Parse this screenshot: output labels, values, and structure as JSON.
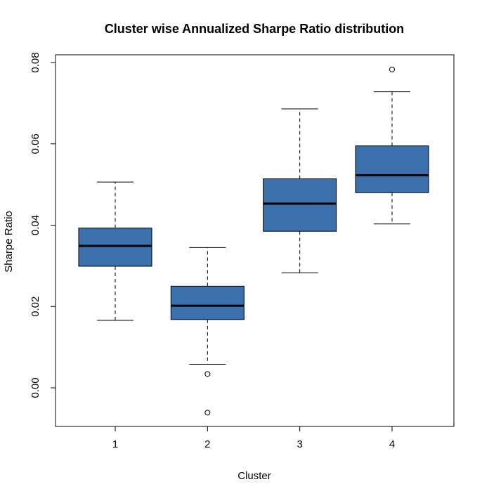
{
  "chart_data": {
    "type": "boxplot",
    "title": "Cluster wise Annualized Sharpe Ratio distribution",
    "xlabel": "Cluster",
    "ylabel": "Sharpe Ratio",
    "ylim": [
      -0.0095,
      0.0819
    ],
    "yticks": [
      0.0,
      0.02,
      0.04,
      0.06,
      0.08
    ],
    "ytick_labels": [
      "0.00",
      "0.02",
      "0.04",
      "0.06",
      "0.08"
    ],
    "categories": [
      "1",
      "2",
      "3",
      "4"
    ],
    "box_color": "#3A70AB",
    "boxes": [
      {
        "category": "1",
        "whisker_low": 0.0166,
        "q1": 0.0299,
        "median": 0.0349,
        "q3": 0.0393,
        "whisker_high": 0.0506,
        "outliers": []
      },
      {
        "category": "2",
        "whisker_low": 0.0058,
        "q1": 0.0168,
        "median": 0.0202,
        "q3": 0.025,
        "whisker_high": 0.0345,
        "outliers": [
          0.0034,
          -0.0061
        ]
      },
      {
        "category": "3",
        "whisker_low": 0.0283,
        "q1": 0.0385,
        "median": 0.0453,
        "q3": 0.0514,
        "whisker_high": 0.0686,
        "outliers": []
      },
      {
        "category": "4",
        "whisker_low": 0.0403,
        "q1": 0.048,
        "median": 0.0523,
        "q3": 0.0595,
        "whisker_high": 0.0728,
        "outliers": [
          0.0783
        ]
      }
    ],
    "grid": false,
    "legend": "none"
  }
}
